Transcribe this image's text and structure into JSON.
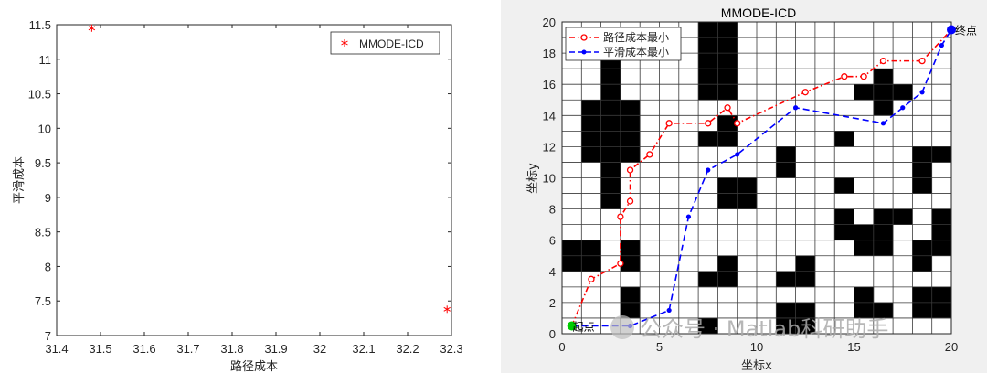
{
  "watermark": {
    "text": "公众号 · Matlab科研助手"
  },
  "chart_data": [
    {
      "type": "scatter",
      "title": "",
      "xlabel": "路径成本",
      "ylabel": "平滑成本",
      "xlim": [
        31.4,
        32.3
      ],
      "ylim": [
        7,
        11.5
      ],
      "xticks": [
        "31.4",
        "31.5",
        "31.6",
        "31.7",
        "31.8",
        "31.9",
        "32",
        "32.1",
        "32.2",
        "32.3"
      ],
      "yticks": [
        "7",
        "7.5",
        "8",
        "8.5",
        "9",
        "9.5",
        "10",
        "10.5",
        "11",
        "11.5"
      ],
      "grid": false,
      "legend_position": "top-right",
      "series": [
        {
          "name": "MMODE-ICD",
          "marker": "*",
          "color": "#ff0000",
          "x": [
            31.48,
            32.29
          ],
          "y": [
            11.45,
            7.38
          ]
        }
      ]
    },
    {
      "type": "line",
      "title": "MMODE-ICD",
      "xlabel": "坐标x",
      "ylabel": "坐标y",
      "xlim": [
        0,
        20
      ],
      "ylim": [
        0,
        20
      ],
      "xticks": [
        "0",
        "5",
        "10",
        "15",
        "20"
      ],
      "yticks": [
        "0",
        "2",
        "4",
        "6",
        "8",
        "10",
        "12",
        "14",
        "16",
        "18",
        "20"
      ],
      "grid": true,
      "legend_position": "top-left",
      "obstacles": [
        [
          7.5,
          19.5
        ],
        [
          8.5,
          19.5
        ],
        [
          7.5,
          18.5
        ],
        [
          8.5,
          18.5
        ],
        [
          7.5,
          17.5
        ],
        [
          8.5,
          17.5
        ],
        [
          7.5,
          16.5
        ],
        [
          8.5,
          16.5
        ],
        [
          7.5,
          15.5
        ],
        [
          8.5,
          15.5
        ],
        [
          2.5,
          17.5
        ],
        [
          2.5,
          16.5
        ],
        [
          2.5,
          15.5
        ],
        [
          1.5,
          14.5
        ],
        [
          2.5,
          14.5
        ],
        [
          3.5,
          14.5
        ],
        [
          1.5,
          13.5
        ],
        [
          2.5,
          13.5
        ],
        [
          3.5,
          13.5
        ],
        [
          1.5,
          12.5
        ],
        [
          2.5,
          12.5
        ],
        [
          3.5,
          12.5
        ],
        [
          1.5,
          11.5
        ],
        [
          2.5,
          11.5
        ],
        [
          3.5,
          11.5
        ],
        [
          2.5,
          10.5
        ],
        [
          2.5,
          9.5
        ],
        [
          2.5,
          8.5
        ],
        [
          8.5,
          13.5
        ],
        [
          7.5,
          12.5
        ],
        [
          8.5,
          12.5
        ],
        [
          16.5,
          16.5
        ],
        [
          15.5,
          15.5
        ],
        [
          16.5,
          15.5
        ],
        [
          17.5,
          15.5
        ],
        [
          16.5,
          14.5
        ],
        [
          14.5,
          12.5
        ],
        [
          14.5,
          9.5
        ],
        [
          11.5,
          11.5
        ],
        [
          11.5,
          10.5
        ],
        [
          18.5,
          11.5
        ],
        [
          19.5,
          11.5
        ],
        [
          18.5,
          10.5
        ],
        [
          18.5,
          9.5
        ],
        [
          8.5,
          9.5
        ],
        [
          9.5,
          9.5
        ],
        [
          8.5,
          8.5
        ],
        [
          9.5,
          8.5
        ],
        [
          14.5,
          7.5
        ],
        [
          14.5,
          6.5
        ],
        [
          15.5,
          6.5
        ],
        [
          15.5,
          5.5
        ],
        [
          16.5,
          7.5
        ],
        [
          17.5,
          7.5
        ],
        [
          16.5,
          6.5
        ],
        [
          16.5,
          5.5
        ],
        [
          19.5,
          7.5
        ],
        [
          19.5,
          6.5
        ],
        [
          19.5,
          5.5
        ],
        [
          18.5,
          5.5
        ],
        [
          0.5,
          5.5
        ],
        [
          1.5,
          5.5
        ],
        [
          0.5,
          4.5
        ],
        [
          1.5,
          4.5
        ],
        [
          3.5,
          5.5
        ],
        [
          3.5,
          4.5
        ],
        [
          8.5,
          4.5
        ],
        [
          7.5,
          3.5
        ],
        [
          8.5,
          3.5
        ],
        [
          12.5,
          4.5
        ],
        [
          11.5,
          3.5
        ],
        [
          12.5,
          3.5
        ],
        [
          18.5,
          4.5
        ],
        [
          18.5,
          2.5
        ],
        [
          19.5,
          2.5
        ],
        [
          18.5,
          1.5
        ],
        [
          19.5,
          1.5
        ],
        [
          3.5,
          2.5
        ],
        [
          3.5,
          1.5
        ],
        [
          15.5,
          2.5
        ],
        [
          15.5,
          1.5
        ],
        [
          16.5,
          1.5
        ],
        [
          11.5,
          1.5
        ],
        [
          12.5,
          1.5
        ],
        [
          11.5,
          0.5
        ],
        [
          12.5,
          0.5
        ],
        [
          7.5,
          0.5
        ]
      ],
      "series": [
        {
          "name": "路径成本最小",
          "style": "dash-dot",
          "marker": "o",
          "color": "#ff0000",
          "x": [
            0.5,
            1.5,
            3.0,
            3.0,
            3.5,
            3.5,
            4.5,
            5.5,
            7.5,
            8.5,
            9.0,
            12.5,
            14.5,
            15.5,
            16.5,
            18.5,
            20.0
          ],
          "y": [
            0.5,
            3.5,
            4.5,
            7.5,
            8.5,
            10.5,
            11.5,
            13.5,
            13.5,
            14.5,
            13.5,
            15.5,
            16.5,
            16.5,
            17.5,
            17.5,
            19.5
          ]
        },
        {
          "name": "平滑成本最小",
          "style": "dashed",
          "marker": ".",
          "color": "#0000ff",
          "x": [
            0.5,
            3.5,
            5.5,
            6.5,
            7.5,
            9.0,
            12.0,
            16.5,
            17.5,
            18.5,
            19.5,
            20.0
          ],
          "y": [
            0.5,
            0.5,
            1.5,
            7.5,
            10.5,
            11.5,
            14.5,
            13.5,
            14.5,
            15.5,
            18.5,
            19.5
          ]
        }
      ],
      "endpoints": [
        {
          "label": "起点",
          "x": 0.5,
          "y": 0.5,
          "color": "#00cc00"
        },
        {
          "label": "终点",
          "x": 20.0,
          "y": 19.5,
          "color": "#0000ff"
        }
      ]
    }
  ]
}
